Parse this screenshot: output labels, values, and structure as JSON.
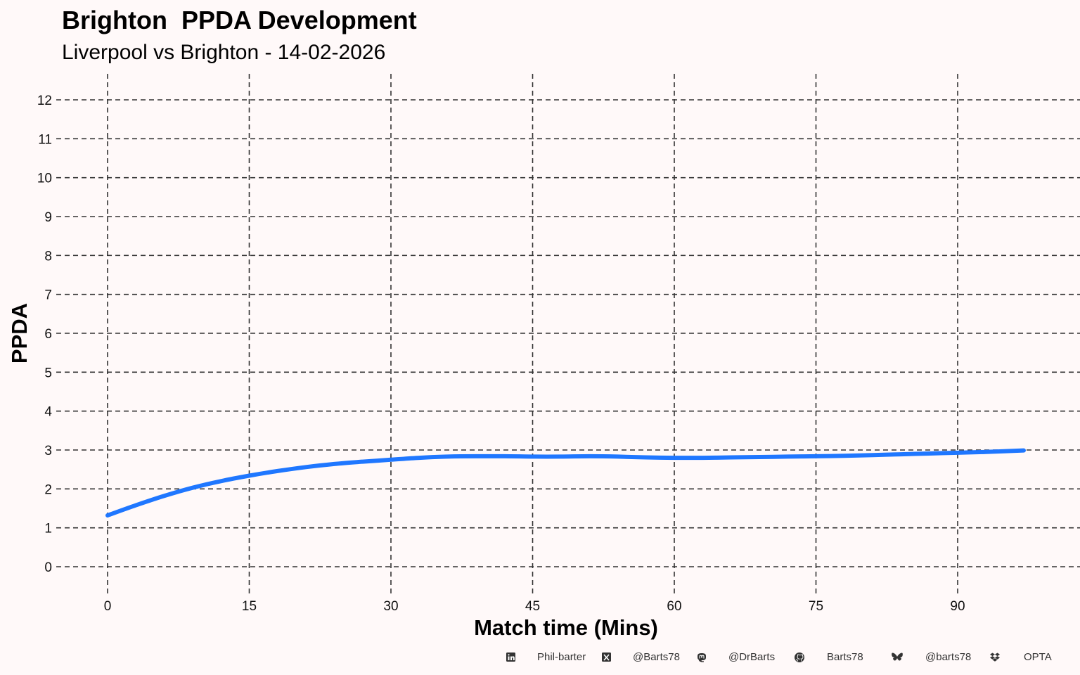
{
  "header": {
    "title": "Brighton  PPDA Development",
    "subtitle": "Liverpool vs Brighton - 14-02-2026"
  },
  "chart_data": {
    "type": "line",
    "title": "Brighton  PPDA Development",
    "subtitle": "Liverpool vs Brighton - 14-02-2026",
    "xlabel": "Match time (Mins)",
    "ylabel": "PPDA",
    "xlim": [
      -3,
      102
    ],
    "ylim": [
      -0.5,
      12.6
    ],
    "x_ticks": [
      0,
      15,
      30,
      45,
      60,
      75,
      90
    ],
    "y_ticks": [
      0,
      1,
      2,
      3,
      4,
      5,
      6,
      7,
      8,
      9,
      10,
      11,
      12
    ],
    "grid": true,
    "legend": "none",
    "series": [
      {
        "color": "#1f77ff",
        "x": [
          0,
          3,
          6,
          9,
          12,
          15,
          18,
          21,
          24,
          27,
          30,
          33,
          36,
          39,
          42,
          45,
          48,
          51,
          54,
          57,
          60,
          63,
          66,
          69,
          72,
          75,
          78,
          81,
          84,
          87,
          90,
          93,
          97
        ],
        "y": [
          1.32,
          1.58,
          1.82,
          2.03,
          2.2,
          2.34,
          2.46,
          2.56,
          2.64,
          2.7,
          2.75,
          2.8,
          2.83,
          2.84,
          2.84,
          2.83,
          2.83,
          2.84,
          2.83,
          2.81,
          2.8,
          2.8,
          2.81,
          2.82,
          2.83,
          2.84,
          2.85,
          2.87,
          2.89,
          2.91,
          2.93,
          2.95,
          2.99
        ]
      }
    ]
  },
  "footer": {
    "items": [
      {
        "icon": "linkedin-icon",
        "label": "Phil-barter"
      },
      {
        "icon": "x-twitter-icon",
        "label": "@Barts78"
      },
      {
        "icon": "mastodon-icon",
        "label": "@DrBarts"
      },
      {
        "icon": "github-icon",
        "label": "Barts78"
      },
      {
        "icon": "bluesky-icon",
        "label": "@barts78"
      },
      {
        "icon": "dropbox-icon",
        "label": "OPTA"
      }
    ]
  }
}
